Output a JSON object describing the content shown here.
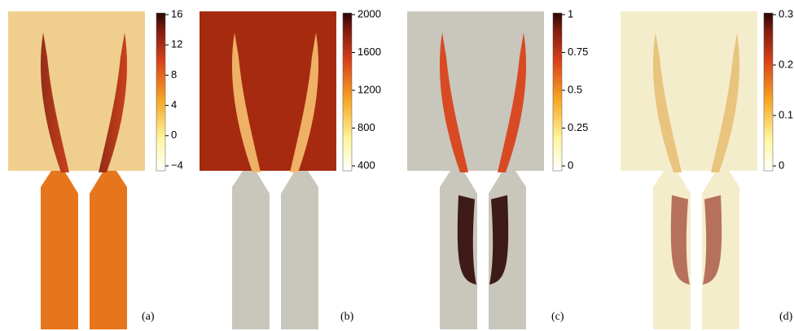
{
  "panels": [
    {
      "label": "(a)",
      "colorbar_ticks": [
        "16",
        "12",
        "8",
        "4",
        "0",
        "−4"
      ]
    },
    {
      "label": "(b)",
      "colorbar_ticks": [
        "2000",
        "1600",
        "1200",
        "800",
        "400"
      ]
    },
    {
      "label": "(c)",
      "colorbar_ticks": [
        "1",
        "0.75",
        "0.5",
        "0.25",
        "0"
      ]
    },
    {
      "label": "(d)",
      "colorbar_ticks": [
        "0.3",
        "0.2",
        "0.1",
        "0"
      ]
    }
  ]
}
